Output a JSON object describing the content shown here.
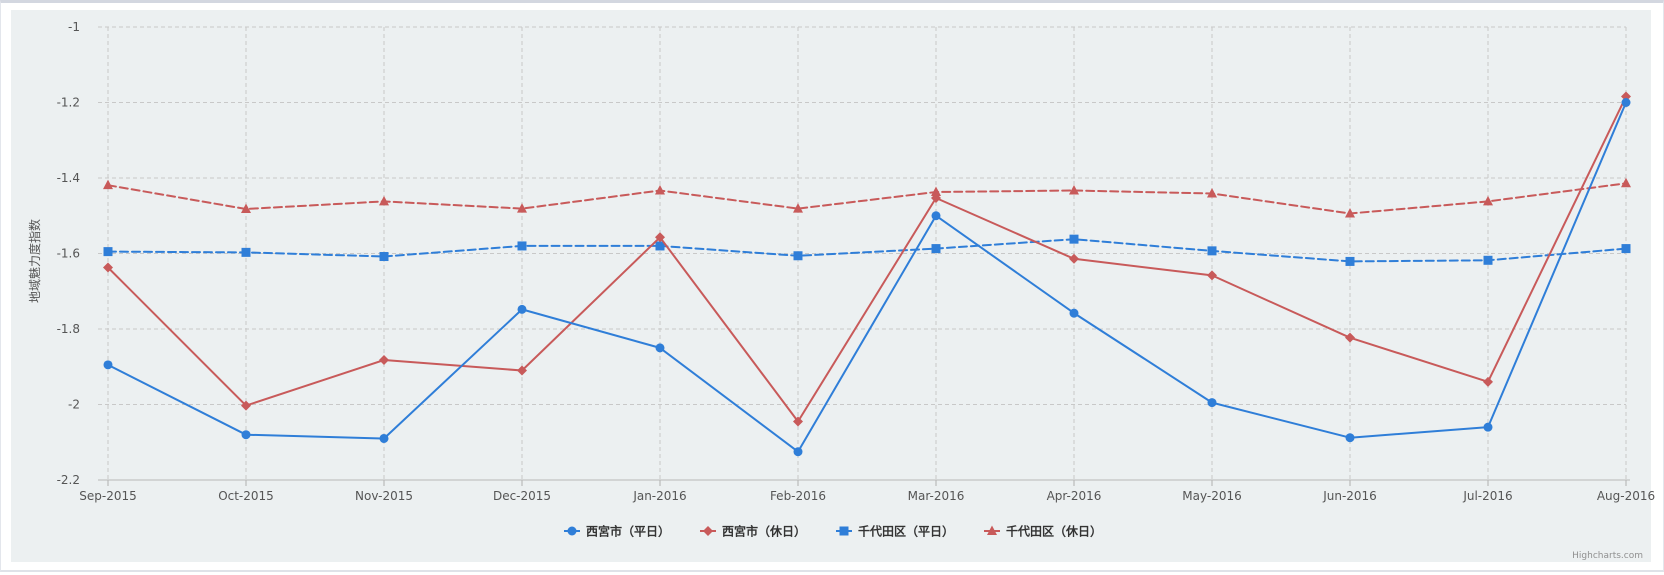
{
  "chart_data": {
    "type": "line",
    "title": "",
    "xlabel": "",
    "ylabel": "地域魅力度指数",
    "categories": [
      "Sep-2015",
      "Oct-2015",
      "Nov-2015",
      "Dec-2015",
      "Jan-2016",
      "Feb-2016",
      "Mar-2016",
      "Apr-2016",
      "May-2016",
      "Jun-2016",
      "Jul-2016",
      "Aug-2016"
    ],
    "ylim": [
      -2.2,
      -1
    ],
    "yticks": [
      -1,
      -1.2,
      -1.4,
      -1.6,
      -1.8,
      -2,
      -2.2
    ],
    "ytick_labels": [
      "-1",
      "-1.2",
      "-1.4",
      "-1.6",
      "-1.8",
      "-2",
      "-2.2"
    ],
    "grid": true,
    "legend_position": "bottom-center",
    "series": [
      {
        "name": "西宮市（平日）",
        "color": "#2f7ed8",
        "dash": "solid",
        "marker": "circle",
        "values": [
          -1.895,
          -2.08,
          -2.09,
          -1.748,
          -1.85,
          -2.125,
          -1.5,
          -1.758,
          -1.995,
          -2.088,
          -2.06,
          -1.2
        ]
      },
      {
        "name": "西宮市（休日）",
        "color": "#c85a5a",
        "dash": "solid",
        "marker": "diamond",
        "values": [
          -1.637,
          -2.003,
          -1.882,
          -1.91,
          -1.557,
          -2.045,
          -1.453,
          -1.614,
          -1.658,
          -1.823,
          -1.94,
          -1.184
        ]
      },
      {
        "name": "千代田区（平日）",
        "color": "#2f7ed8",
        "dash": "dashed",
        "marker": "square",
        "values": [
          -1.595,
          -1.597,
          -1.608,
          -1.58,
          -1.58,
          -1.606,
          -1.587,
          -1.562,
          -1.593,
          -1.621,
          -1.618,
          -1.587
        ]
      },
      {
        "name": "千代田区（休日）",
        "color": "#c85a5a",
        "dash": "dashed",
        "marker": "triangle",
        "values": [
          -1.419,
          -1.482,
          -1.462,
          -1.481,
          -1.433,
          -1.481,
          -1.437,
          -1.433,
          -1.441,
          -1.494,
          -1.462,
          -1.414
        ]
      }
    ],
    "credits": "Highcharts.com"
  }
}
